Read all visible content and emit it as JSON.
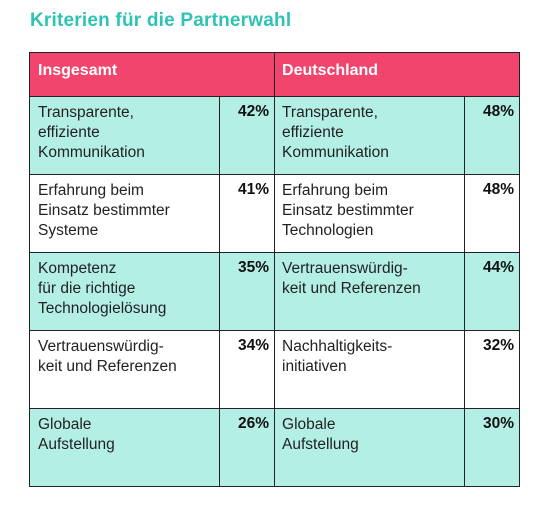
{
  "title": "Kriterien für die Partnerwahl",
  "headers": {
    "left": "Insgesamt",
    "right": "Deutschland"
  },
  "rows": [
    {
      "left_label": "Transparente,\neffiziente\nKommunikation",
      "left_pct": "42%",
      "right_label": "Transparente,\neffiziente\nKommunikation",
      "right_pct": "48%"
    },
    {
      "left_label": "Erfahrung beim\nEinsatz bestimmter\nSysteme",
      "left_pct": "41%",
      "right_label": "Erfahrung beim\nEinsatz bestimmter\nTechnologien",
      "right_pct": "48%"
    },
    {
      "left_label": "Kompetenz\nfür die richtige\nTechnologielösung",
      "left_pct": "35%",
      "right_label": "Vertrauenswürdig-\nkeit und Referenzen",
      "right_pct": "44%"
    },
    {
      "left_label": "Vertrauenswürdig-\nkeit und Referenzen",
      "left_pct": "34%",
      "right_label": "Nachhaltigkeits-\ninitiativen",
      "right_pct": "32%"
    },
    {
      "left_label": "Globale\nAufstellung",
      "left_pct": "26%",
      "right_label": "Globale\nAufstellung",
      "right_pct": "30%"
    }
  ],
  "colors": {
    "title": "#2fc3b4",
    "header_bg": "#f1456d",
    "teal_row": "#b4efe6",
    "white_row": "#ffffff"
  }
}
